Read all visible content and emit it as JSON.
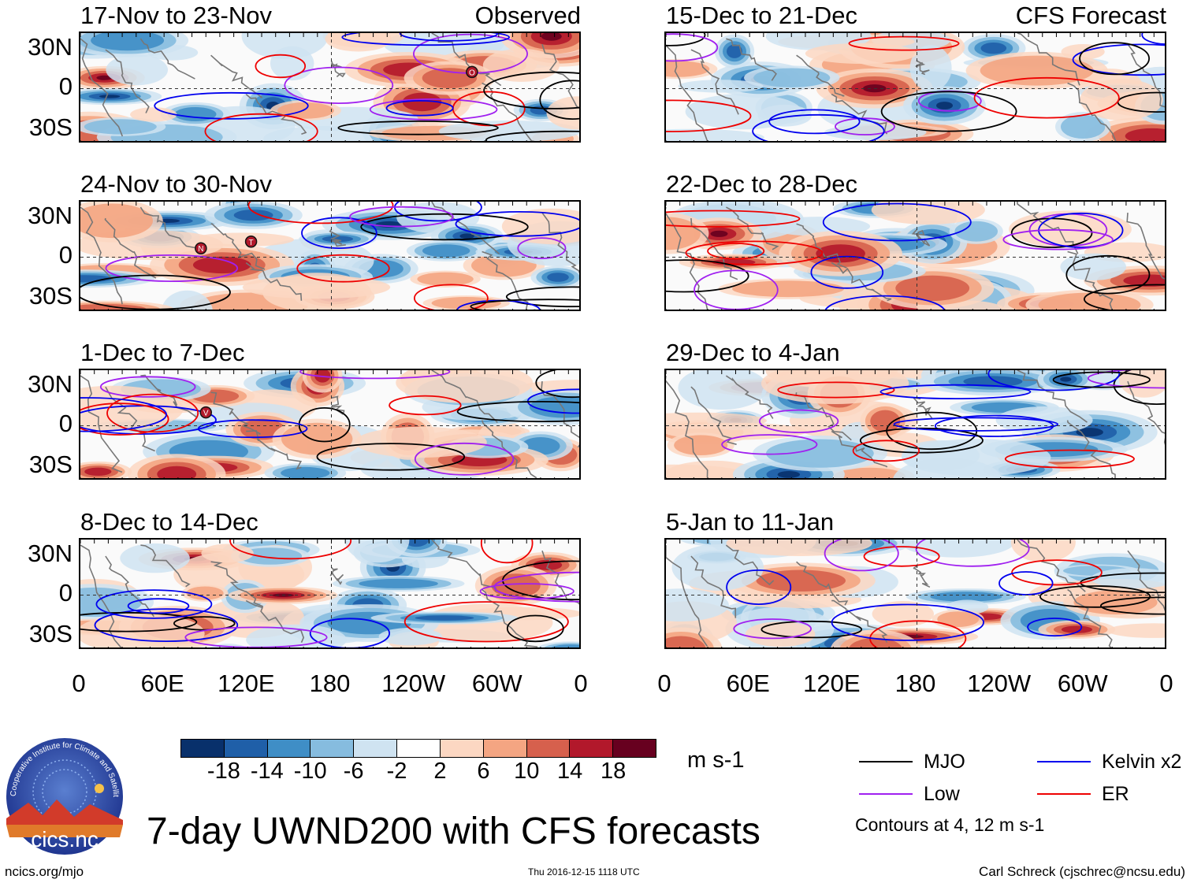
{
  "chart_data": {
    "type": "heatmap",
    "title": "7-day UWND200 with CFS forecasts",
    "variable": "UWND200",
    "units": "m s-1",
    "left_column_label": "Observed",
    "right_column_label": "CFS Forecast",
    "y_ticks": [
      "30N",
      "0",
      "30S"
    ],
    "x_ticks": [
      "0",
      "60E",
      "120E",
      "180",
      "120W",
      "60W",
      "0"
    ],
    "x_range": [
      0,
      360
    ],
    "y_range": [
      -40,
      40
    ],
    "panels": [
      {
        "title": "17-Nov to 23-Nov",
        "tag": "Observed",
        "column": "observed"
      },
      {
        "title": "24-Nov to 30-Nov",
        "tag": "",
        "column": "observed"
      },
      {
        "title": "1-Dec to 7-Dec",
        "tag": "",
        "column": "observed"
      },
      {
        "title": "8-Dec to 14-Dec",
        "tag": "",
        "column": "observed"
      },
      {
        "title": "15-Dec to 21-Dec",
        "tag": "CFS Forecast",
        "column": "forecast"
      },
      {
        "title": "22-Dec to 28-Dec",
        "tag": "",
        "column": "forecast"
      },
      {
        "title": "29-Dec to 4-Jan",
        "tag": "",
        "column": "forecast"
      },
      {
        "title": "5-Jan to 11-Jan",
        "tag": "",
        "column": "forecast"
      }
    ],
    "colorbar": {
      "labels": [
        "-18",
        "-14",
        "-10",
        "-6",
        "-2",
        "2",
        "6",
        "10",
        "14",
        "18"
      ],
      "colors": [
        "#08306b",
        "#1f5fa8",
        "#3f8ec6",
        "#86bcdf",
        "#cfe3f1",
        "#ffffff",
        "#fcd7c2",
        "#f4a582",
        "#d6604d",
        "#b2182b",
        "#67001f"
      ]
    },
    "legend": [
      {
        "label": "MJO",
        "color": "#000000"
      },
      {
        "label": "Kelvin x2",
        "color": "#0000ee"
      },
      {
        "label": "Low",
        "color": "#a020f0"
      },
      {
        "label": "ER",
        "color": "#ee0000"
      }
    ],
    "contour_note": "Contours at 4, 12 m s-1",
    "storm_markers": [
      {
        "panel": 0,
        "label": "O"
      },
      {
        "panel": 1,
        "label": "N"
      },
      {
        "panel": 1,
        "label": "T"
      },
      {
        "panel": 2,
        "label": "V"
      }
    ]
  },
  "footer": {
    "site": "ncics.org/mjo",
    "timestamp": "Thu 2016-12-15 1118 UTC",
    "author": "Carl Schreck (cjschrec@ncsu.edu)"
  },
  "logo": {
    "name": "cics.nc",
    "ring_text": "Cooperative Institute for Climate and Satellites"
  }
}
